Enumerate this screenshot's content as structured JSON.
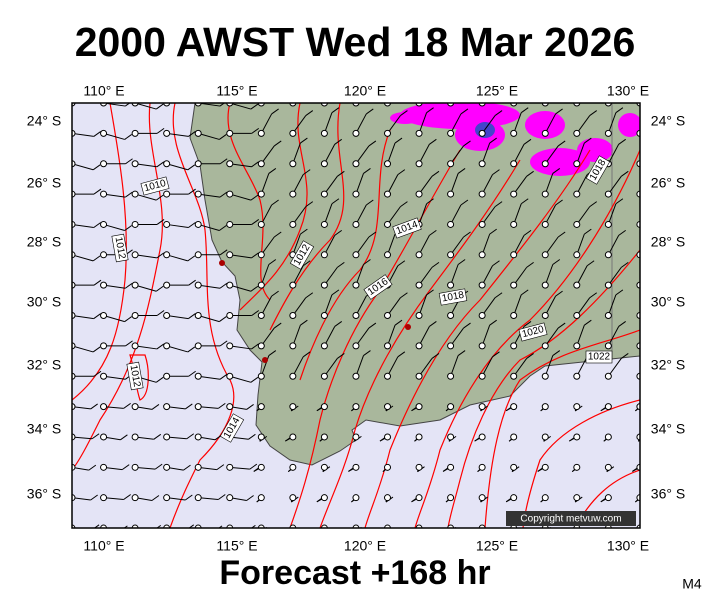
{
  "header": {
    "title": "2000 AWST Wed 18 Mar 2026"
  },
  "map": {
    "lon_labels": [
      "110° E",
      "115° E",
      "120° E",
      "125° E",
      "130° E"
    ],
    "lat_labels": [
      "24° S",
      "26° S",
      "28° S",
      "30° S",
      "32° S",
      "34° S",
      "36° S"
    ],
    "isobar_labels": [
      "1010",
      "1012",
      "1012",
      "1014",
      "1016",
      "1018",
      "1020",
      "1022",
      "1018",
      "1012",
      "1014"
    ],
    "copyright": "Copyright metvuw.com"
  },
  "footer": {
    "forecast": "Forecast +168 hr",
    "code": "M4"
  }
}
